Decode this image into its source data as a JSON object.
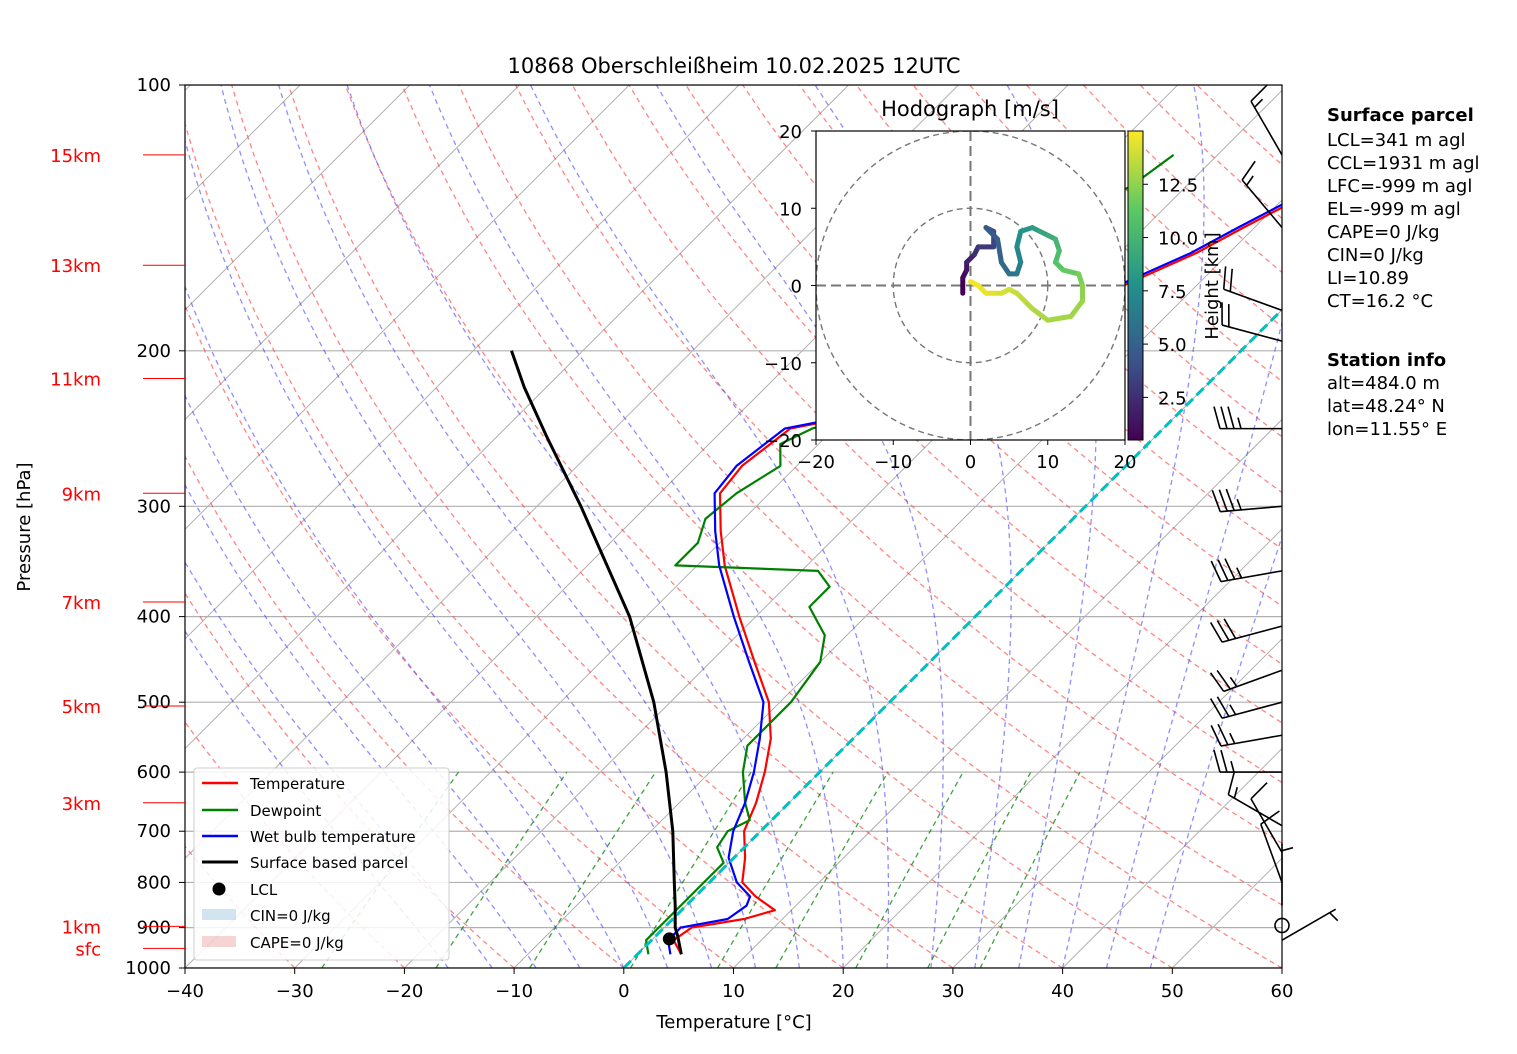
{
  "chart_data": {
    "type": "skew-t",
    "title": "10868 Oberschleißheim 10.02.2025 12UTC",
    "xlabel": "Temperature [°C]",
    "ylabel": "Pressure [hPa]",
    "xlim": [
      -40,
      60
    ],
    "ylim": [
      1000,
      100
    ],
    "x_ticks": [
      "−40",
      "−30",
      "−20",
      "−10",
      "0",
      "10",
      "20",
      "30",
      "40",
      "50",
      "60"
    ],
    "y_ticks": [
      {
        "p": 100,
        "label": "100"
      },
      {
        "p": 200,
        "label": "200"
      },
      {
        "p": 300,
        "label": "300"
      },
      {
        "p": 400,
        "label": "400"
      },
      {
        "p": 500,
        "label": "500"
      },
      {
        "p": 600,
        "label": "600"
      },
      {
        "p": 700,
        "label": "700"
      },
      {
        "p": 800,
        "label": "800"
      },
      {
        "p": 900,
        "label": "900"
      },
      {
        "p": 1000,
        "label": "1000"
      }
    ],
    "height_labels": [
      {
        "p": 120,
        "label": "15km"
      },
      {
        "p": 160,
        "label": "13km"
      },
      {
        "p": 215,
        "label": "11km"
      },
      {
        "p": 290,
        "label": "9km"
      },
      {
        "p": 385,
        "label": "7km"
      },
      {
        "p": 505,
        "label": "5km"
      },
      {
        "p": 650,
        "label": "3km"
      },
      {
        "p": 897,
        "label": "1km"
      },
      {
        "p": 950,
        "label": "sfc"
      }
    ],
    "series": [
      {
        "name": "Temperature",
        "color": "#ff0000",
        "points": [
          [
            965,
            4.0
          ],
          [
            930,
            2.0
          ],
          [
            900,
            2.5
          ],
          [
            880,
            6.5
          ],
          [
            860,
            8.5
          ],
          [
            830,
            5.5
          ],
          [
            800,
            3.0
          ],
          [
            750,
            1.0
          ],
          [
            700,
            -1.5
          ],
          [
            650,
            -3.0
          ],
          [
            600,
            -5.0
          ],
          [
            550,
            -7.5
          ],
          [
            500,
            -11.0
          ],
          [
            450,
            -16.0
          ],
          [
            400,
            -21.5
          ],
          [
            350,
            -27.5
          ],
          [
            320,
            -31.0
          ],
          [
            290,
            -34.5
          ],
          [
            270,
            -35.0
          ],
          [
            245,
            -34.0
          ],
          [
            235,
            -28.0
          ],
          [
            225,
            -24.5
          ],
          [
            210,
            -25.5
          ],
          [
            200,
            -23.5
          ],
          [
            185,
            -20.5
          ],
          [
            170,
            -17.0
          ],
          [
            155,
            -13.0
          ],
          [
            145,
            -11.0
          ],
          [
            130,
            -7.5
          ],
          [
            120,
            -6.0
          ]
        ]
      },
      {
        "name": "Dewpoint",
        "color": "#008000",
        "points": [
          [
            965,
            1.0
          ],
          [
            930,
            -0.5
          ],
          [
            900,
            -0.5
          ],
          [
            870,
            -0.5
          ],
          [
            840,
            -0.5
          ],
          [
            800,
            -0.5
          ],
          [
            760,
            -0.5
          ],
          [
            730,
            -2.5
          ],
          [
            700,
            -3.0
          ],
          [
            680,
            -2.0
          ],
          [
            650,
            -4.0
          ],
          [
            600,
            -7.0
          ],
          [
            560,
            -9.0
          ],
          [
            500,
            -9.0
          ],
          [
            450,
            -10.0
          ],
          [
            420,
            -12.0
          ],
          [
            390,
            -16.0
          ],
          [
            370,
            -16.0
          ],
          [
            355,
            -18.5
          ],
          [
            350,
            -32.0
          ],
          [
            330,
            -32.0
          ],
          [
            310,
            -33.5
          ],
          [
            290,
            -33.0
          ],
          [
            270,
            -31.5
          ],
          [
            255,
            -33.5
          ],
          [
            245,
            -32.0
          ],
          [
            235,
            -28.5
          ],
          [
            225,
            -34.5
          ],
          [
            215,
            -33.0
          ],
          [
            200,
            -34.5
          ],
          [
            185,
            -32.5
          ],
          [
            170,
            -31.5
          ],
          [
            160,
            -31.0
          ],
          [
            145,
            -28.5
          ],
          [
            130,
            -25.0
          ],
          [
            120,
            -24.0
          ]
        ]
      },
      {
        "name": "Wet bulb temperature",
        "color": "#0000ff",
        "points": [
          [
            965,
            3.0
          ],
          [
            930,
            1.5
          ],
          [
            900,
            1.5
          ],
          [
            880,
            5.0
          ],
          [
            850,
            5.5
          ],
          [
            830,
            5.0
          ],
          [
            800,
            2.5
          ],
          [
            750,
            -0.5
          ],
          [
            700,
            -2.5
          ],
          [
            650,
            -4.0
          ],
          [
            600,
            -6.0
          ],
          [
            550,
            -8.5
          ],
          [
            500,
            -11.5
          ],
          [
            450,
            -16.5
          ],
          [
            400,
            -22.0
          ],
          [
            350,
            -28.0
          ],
          [
            320,
            -31.5
          ],
          [
            290,
            -35.0
          ],
          [
            270,
            -35.5
          ],
          [
            245,
            -34.5
          ],
          [
            235,
            -28.5
          ],
          [
            225,
            -25.0
          ],
          [
            210,
            -26.0
          ],
          [
            200,
            -24.0
          ],
          [
            185,
            -21.0
          ],
          [
            170,
            -17.5
          ],
          [
            155,
            -13.5
          ],
          [
            145,
            -11.5
          ],
          [
            130,
            -8.0
          ],
          [
            120,
            -6.5
          ]
        ]
      },
      {
        "name": "Surface based parcel",
        "color": "#000000",
        "points": [
          [
            965,
            4.0
          ],
          [
            920,
            2.0
          ],
          [
            900,
            1.0
          ],
          [
            850,
            -1.0
          ],
          [
            800,
            -3.2
          ],
          [
            700,
            -8.0
          ],
          [
            600,
            -14.0
          ],
          [
            500,
            -21.5
          ],
          [
            400,
            -31.5
          ],
          [
            300,
            -46.0
          ],
          [
            250,
            -55.5
          ],
          [
            220,
            -62.0
          ],
          [
            200,
            -66.5
          ]
        ]
      }
    ],
    "lcl": {
      "name": "LCL",
      "p": 927,
      "t": 1.5
    },
    "cin_legend": "CIN=0 J/kg",
    "cape_legend": "CAPE=0 J/kg",
    "legend": [
      "Temperature",
      "Dewpoint",
      "Wet bulb temperature",
      "Surface based parcel",
      "LCL",
      "CIN=0 J/kg",
      "CAPE=0 J/kg"
    ],
    "legend_position": "lower-left",
    "hodograph": {
      "title": "Hodograph [m/s]",
      "xlim": [
        -20,
        20
      ],
      "ylim": [
        -20,
        20
      ],
      "x_ticks": [
        "−20",
        "−10",
        "0",
        "10",
        "20"
      ],
      "y_ticks": [
        "20",
        "10",
        "0",
        "−10",
        "−20"
      ],
      "colorbar_label": "Height [km]",
      "colorbar_ticks": [
        "2.5",
        "5.0",
        "7.5",
        "10.0",
        "12.5"
      ],
      "colorbar_range": [
        0.5,
        15
      ],
      "trace": [
        [
          -1,
          -1,
          0.5
        ],
        [
          -1,
          1,
          1.0
        ],
        [
          -0.5,
          2,
          1.5
        ],
        [
          -0.5,
          3,
          2.0
        ],
        [
          0.5,
          4,
          2.5
        ],
        [
          1,
          5,
          3.0
        ],
        [
          3,
          5,
          3.5
        ],
        [
          3,
          7,
          4.0
        ],
        [
          2,
          7.5,
          4.5
        ],
        [
          3.5,
          6,
          5.0
        ],
        [
          4,
          3,
          5.5
        ],
        [
          5,
          1.5,
          6.0
        ],
        [
          6,
          1.5,
          6.5
        ],
        [
          6.5,
          3,
          7.0
        ],
        [
          6,
          5,
          7.5
        ],
        [
          6.5,
          7,
          8.0
        ],
        [
          8,
          7.5,
          8.5
        ],
        [
          9,
          7,
          9.0
        ],
        [
          10,
          6.5,
          9.5
        ],
        [
          11,
          6,
          10.0
        ],
        [
          11.5,
          4.5,
          10.5
        ],
        [
          11,
          3,
          11.0
        ],
        [
          12,
          2,
          11.5
        ],
        [
          14,
          1.5,
          12.0
        ],
        [
          14.5,
          0,
          12.5
        ],
        [
          14.5,
          -2,
          12.8
        ],
        [
          13,
          -4,
          13.0
        ],
        [
          10,
          -4.5,
          13.2
        ],
        [
          8,
          -3,
          13.4
        ],
        [
          7,
          -2,
          13.6
        ],
        [
          6,
          -1,
          13.8
        ],
        [
          5,
          -0.5,
          14.0
        ],
        [
          4,
          -1,
          14.2
        ],
        [
          3,
          -1,
          14.4
        ],
        [
          2,
          -1,
          14.6
        ],
        [
          1,
          0,
          14.8
        ],
        [
          0,
          0.5,
          15.0
        ]
      ]
    },
    "info_boxes": [
      {
        "title": "Surface parcel",
        "lines": [
          "LCL=341 m agl",
          "CCL=1931 m agl",
          "LFC=-999 m agl",
          "EL=-999 m agl",
          "CAPE=0 J/kg",
          "CIN=0 J/kg",
          "LI=10.89",
          "CT=16.2 °C"
        ]
      },
      {
        "title": "Station info",
        "lines": [
          "alt=484.0 m",
          "lat=48.24° N",
          "lon=11.55° E"
        ]
      }
    ],
    "wind_barbs": [
      {
        "p": 120,
        "speed": 15,
        "dir": 330
      },
      {
        "p": 145,
        "speed": 15,
        "dir": 320
      },
      {
        "p": 180,
        "speed": 20,
        "dir": 290
      },
      {
        "p": 195,
        "speed": 20,
        "dir": 285
      },
      {
        "p": 245,
        "speed": 35,
        "dir": 270
      },
      {
        "p": 300,
        "speed": 35,
        "dir": 265
      },
      {
        "p": 355,
        "speed": 35,
        "dir": 260
      },
      {
        "p": 410,
        "speed": 30,
        "dir": 255
      },
      {
        "p": 460,
        "speed": 25,
        "dir": 250
      },
      {
        "p": 500,
        "speed": 25,
        "dir": 255
      },
      {
        "p": 545,
        "speed": 25,
        "dir": 260
      },
      {
        "p": 600,
        "speed": 25,
        "dir": 270
      },
      {
        "p": 690,
        "speed": 15,
        "dir": 300
      },
      {
        "p": 740,
        "speed": 10,
        "dir": 330
      },
      {
        "p": 800,
        "speed": 10,
        "dir": 340
      },
      {
        "p": 850,
        "speed": 5,
        "dir": 0
      },
      {
        "p": 895,
        "speed": 0,
        "dir": 0
      },
      {
        "p": 930,
        "speed": 5,
        "dir": 60
      }
    ],
    "grid": true
  }
}
